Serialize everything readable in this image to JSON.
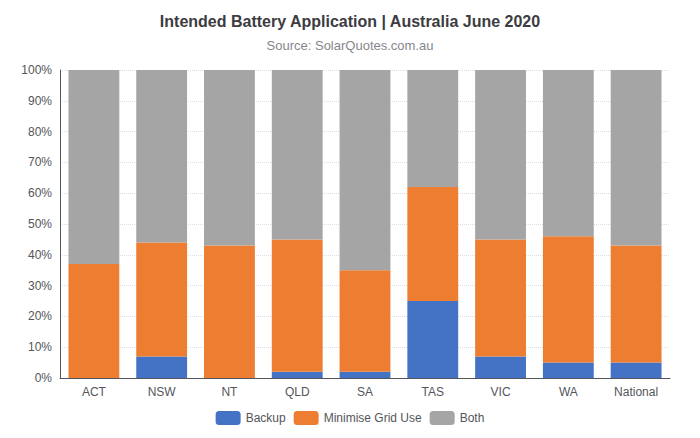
{
  "chart_data": {
    "type": "bar",
    "title": "Intended Battery Application | Australia June 2020",
    "subtitle": "Source: SolarQuotes.com.au",
    "categories": [
      "ACT",
      "NSW",
      "NT",
      "QLD",
      "SA",
      "TAS",
      "VIC",
      "WA",
      "National"
    ],
    "series": [
      {
        "name": "Backup",
        "color": "#4472C4",
        "values": [
          0,
          7,
          0,
          2,
          2,
          25,
          7,
          5,
          5
        ]
      },
      {
        "name": "Minimise Grid Use",
        "color": "#ED7D31",
        "values": [
          37,
          37,
          43,
          43,
          33,
          37,
          38,
          41,
          38
        ]
      },
      {
        "name": "Both",
        "color": "#A5A5A5",
        "values": [
          63,
          56,
          57,
          55,
          65,
          38,
          55,
          54,
          57
        ]
      }
    ],
    "stacked": true,
    "ylim": [
      0,
      100
    ],
    "yticks": [
      {
        "value": 0,
        "label": "0%"
      },
      {
        "value": 10,
        "label": "10%"
      },
      {
        "value": 20,
        "label": "20%"
      },
      {
        "value": 30,
        "label": "30%"
      },
      {
        "value": 40,
        "label": "40%"
      },
      {
        "value": 50,
        "label": "50%"
      },
      {
        "value": 60,
        "label": "60%"
      },
      {
        "value": 70,
        "label": "70%"
      },
      {
        "value": 80,
        "label": "80%"
      },
      {
        "value": 90,
        "label": "90%"
      },
      {
        "value": 100,
        "label": "100%"
      }
    ],
    "grid": true,
    "legend": "bottom"
  }
}
